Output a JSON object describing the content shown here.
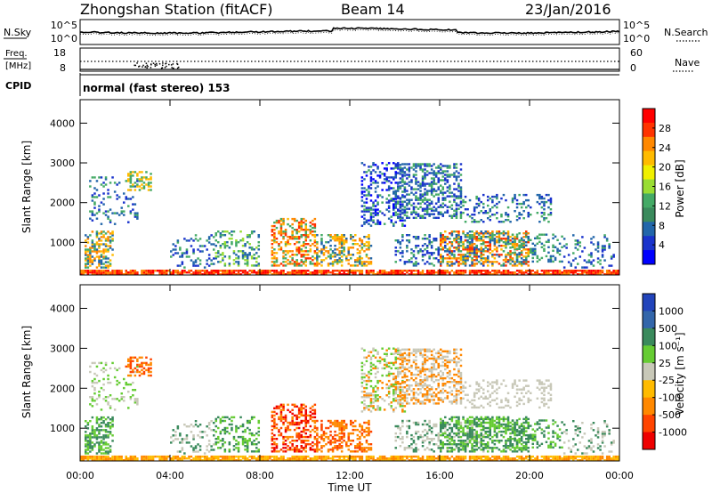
{
  "header": {
    "station": "Zhongshan Station (fitACF)",
    "beam": "Beam 14",
    "date": "23/Jan/2016"
  },
  "strip_panels": {
    "nsky": {
      "left_label": "N.Sky",
      "left_ticks": [
        "10^5",
        "10^0"
      ],
      "right_label": "N.Search",
      "right_ticks": [
        "10^5",
        "10^0"
      ]
    },
    "freq": {
      "left_label_1": "Freq.",
      "left_label_2": "[MHz]",
      "left_ticks": [
        "18",
        "8"
      ],
      "right_label": "Nave",
      "right_ticks": [
        "60",
        "0"
      ]
    },
    "cpid": {
      "label": "CPID",
      "text": "normal (fast stereo) 153"
    }
  },
  "chart_data": [
    {
      "type": "heatmap",
      "name": "power",
      "ylabel": "Slant Range [km]",
      "x_ticks": [
        "00:00",
        "04:00",
        "08:00",
        "12:00",
        "16:00",
        "20:00",
        "00:00"
      ],
      "y_ticks": [
        1000,
        2000,
        3000,
        4000
      ],
      "ylim": [
        180,
        4590
      ],
      "colorbar": {
        "label": "Power [dB]",
        "ticks": [
          "28",
          "24",
          "20",
          "16",
          "12",
          "8",
          "4"
        ],
        "colors": [
          "#ff0000",
          "#ff3300",
          "#ff8800",
          "#ffbb00",
          "#f0f000",
          "#99dd33",
          "#44aa66",
          "#3a8a5c",
          "#2266aa",
          "#1a33cc",
          "#0000ff"
        ]
      }
    },
    {
      "type": "heatmap",
      "name": "velocity",
      "ylabel": "Slant Range [km]",
      "xlabel": "Time UT",
      "x_ticks": [
        "00:00",
        "04:00",
        "08:00",
        "12:00",
        "16:00",
        "20:00",
        "00:00"
      ],
      "y_ticks": [
        1000,
        2000,
        3000,
        4000
      ],
      "ylim": [
        180,
        4590
      ],
      "colorbar": {
        "label": "Velocity [m s⁻¹]",
        "ticks": [
          "1000",
          "500",
          "100",
          "25",
          "-25",
          "-100",
          "-500",
          "-1000"
        ],
        "colors": [
          "#2244bb",
          "#3366aa",
          "#3a8a5c",
          "#66cc33",
          "#c8c8b8",
          "#ffbb00",
          "#ff8800",
          "#ff4400",
          "#ee0000"
        ]
      }
    }
  ]
}
